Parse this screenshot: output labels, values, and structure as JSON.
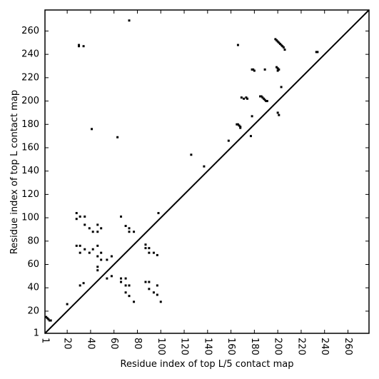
{
  "chart_data": {
    "type": "scatter",
    "x_label": "Residue index of top L/5 contact map",
    "y_label": "Residue index of top L contact map",
    "xlim": [
      1,
      278
    ],
    "ylim": [
      1,
      278
    ],
    "xticks": [
      1,
      20,
      40,
      60,
      80,
      100,
      120,
      140,
      160,
      180,
      200,
      220,
      240,
      260
    ],
    "yticks": [
      1,
      20,
      40,
      60,
      80,
      100,
      120,
      140,
      160,
      180,
      200,
      220,
      240,
      260
    ],
    "color": "#000000",
    "x": [
      2,
      3,
      4,
      5,
      6,
      73,
      30,
      30,
      34,
      41,
      63,
      126,
      137,
      158,
      166,
      165,
      166,
      167,
      168,
      168,
      177,
      178,
      169,
      171,
      173,
      174,
      178,
      179,
      180,
      189,
      185,
      186,
      187,
      188,
      189,
      190,
      191,
      198,
      199,
      200,
      201,
      202,
      203,
      204,
      205,
      206,
      199,
      200,
      201,
      200,
      203,
      200,
      201,
      233,
      234,
      98,
      28,
      28,
      31,
      35,
      35,
      39,
      42,
      46,
      46,
      49,
      28,
      31,
      35,
      31,
      39,
      42,
      46,
      46,
      49,
      49,
      46,
      46,
      54,
      58,
      54,
      58,
      34,
      31,
      20,
      66,
      70,
      73,
      77,
      73,
      66,
      70,
      66,
      70,
      73,
      70,
      73,
      77,
      87,
      90,
      87,
      90,
      94,
      97,
      87,
      90,
      90,
      94,
      97,
      100,
      97
    ],
    "y": [
      15,
      14,
      13,
      12,
      12,
      269,
      247,
      248,
      247,
      176,
      169,
      154,
      144,
      166,
      248,
      180,
      180,
      179,
      178,
      177,
      170,
      187,
      203,
      202,
      203,
      202,
      227,
      227,
      226,
      227,
      204,
      204,
      203,
      202,
      201,
      200,
      200,
      253,
      252,
      251,
      250,
      249,
      248,
      247,
      246,
      244,
      229,
      228,
      227,
      226,
      212,
      190,
      188,
      242,
      242,
      104,
      104,
      99,
      101,
      101,
      94,
      91,
      88,
      94,
      88,
      91,
      76,
      76,
      73,
      70,
      70,
      73,
      76,
      67,
      70,
      64,
      58,
      55,
      64,
      67,
      48,
      50,
      44,
      42,
      26,
      101,
      93,
      91,
      88,
      88,
      48,
      48,
      45,
      42,
      42,
      36,
      33,
      28,
      77,
      74,
      74,
      70,
      70,
      68,
      45,
      45,
      39,
      36,
      34,
      28,
      42
    ]
  }
}
